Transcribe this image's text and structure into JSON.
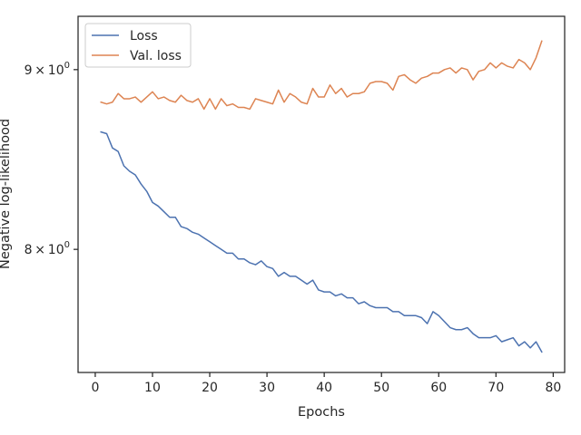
{
  "chart_data": {
    "type": "line",
    "xlabel": "Epochs",
    "ylabel": "Negative log-likelihood",
    "yscale": "log",
    "xlim": [
      -3,
      82
    ],
    "ylim": [
      7.38,
      9.32
    ],
    "xticks": [
      0,
      10,
      20,
      30,
      40,
      50,
      60,
      70,
      80
    ],
    "yticks": [
      {
        "value": 8.0,
        "label_base": "8",
        "label_mult": "×",
        "label_exp_base": "10",
        "label_exp": "0"
      },
      {
        "value": 9.0,
        "label_base": "9",
        "label_mult": "×",
        "label_exp_base": "10",
        "label_exp": "0"
      }
    ],
    "grid": false,
    "legend_position": "top-left",
    "x": [
      1,
      2,
      3,
      4,
      5,
      6,
      7,
      8,
      9,
      10,
      11,
      12,
      13,
      14,
      15,
      16,
      17,
      18,
      19,
      20,
      21,
      22,
      23,
      24,
      25,
      26,
      27,
      28,
      29,
      30,
      31,
      32,
      33,
      34,
      35,
      36,
      37,
      38,
      39,
      40,
      41,
      42,
      43,
      44,
      45,
      46,
      47,
      48,
      49,
      50,
      51,
      52,
      53,
      54,
      55,
      56,
      57,
      58,
      59,
      60,
      61,
      62,
      63,
      64,
      65,
      66,
      67,
      68,
      69,
      70,
      71,
      72,
      73,
      74,
      75,
      76,
      77,
      78
    ],
    "series": [
      {
        "name": "Loss",
        "color": "#4c72b0",
        "values": [
          8.64,
          8.63,
          8.55,
          8.53,
          8.45,
          8.42,
          8.4,
          8.35,
          8.31,
          8.25,
          8.23,
          8.2,
          8.17,
          8.17,
          8.12,
          8.11,
          8.09,
          8.08,
          8.06,
          8.04,
          8.02,
          8.0,
          7.98,
          7.98,
          7.95,
          7.95,
          7.93,
          7.92,
          7.94,
          7.91,
          7.9,
          7.86,
          7.88,
          7.86,
          7.86,
          7.84,
          7.82,
          7.84,
          7.79,
          7.78,
          7.78,
          7.76,
          7.77,
          7.75,
          7.75,
          7.72,
          7.73,
          7.71,
          7.7,
          7.7,
          7.7,
          7.68,
          7.68,
          7.66,
          7.66,
          7.66,
          7.65,
          7.62,
          7.68,
          7.66,
          7.63,
          7.6,
          7.59,
          7.59,
          7.6,
          7.57,
          7.55,
          7.55,
          7.55,
          7.56,
          7.53,
          7.54,
          7.55,
          7.51,
          7.53,
          7.5,
          7.53,
          7.48
        ]
      },
      {
        "name": "Val. loss",
        "color": "#dd8452",
        "values": [
          8.81,
          8.8,
          8.81,
          8.86,
          8.83,
          8.83,
          8.84,
          8.81,
          8.84,
          8.87,
          8.83,
          8.84,
          8.82,
          8.81,
          8.85,
          8.82,
          8.81,
          8.83,
          8.77,
          8.83,
          8.77,
          8.83,
          8.79,
          8.8,
          8.78,
          8.78,
          8.77,
          8.83,
          8.82,
          8.81,
          8.8,
          8.88,
          8.81,
          8.86,
          8.84,
          8.81,
          8.8,
          8.89,
          8.84,
          8.84,
          8.91,
          8.86,
          8.89,
          8.84,
          8.86,
          8.86,
          8.87,
          8.92,
          8.93,
          8.93,
          8.92,
          8.88,
          8.96,
          8.97,
          8.94,
          8.92,
          8.95,
          8.96,
          8.98,
          8.98,
          9.0,
          9.01,
          8.98,
          9.01,
          9.0,
          8.94,
          8.99,
          9.0,
          9.04,
          9.01,
          9.04,
          9.02,
          9.01,
          9.06,
          9.04,
          9.0,
          9.07,
          9.17
        ]
      }
    ]
  }
}
